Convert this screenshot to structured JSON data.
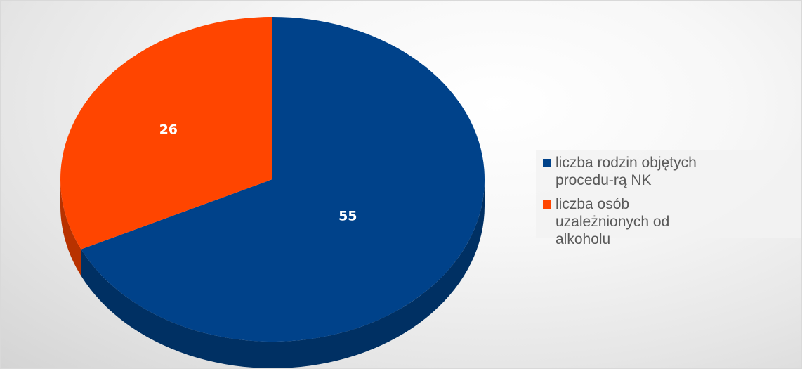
{
  "chart_data": {
    "type": "pie",
    "style": "3d",
    "categories": [
      "liczba rodzin objętych procedu-rą NK",
      "liczba osób uzależnionych od alkoholu"
    ],
    "values": [
      55,
      26
    ],
    "data_labels": [
      "55",
      "26"
    ],
    "colors": [
      "#00428A",
      "#FF4500"
    ],
    "title": "",
    "legend": {
      "position": "right",
      "items": [
        {
          "label": "liczba rodzin objętych procedu-rą NK",
          "color": "#00428A"
        },
        {
          "label": "liczba osób uzależnionych od alkoholu",
          "color": "#FF4500"
        }
      ]
    }
  }
}
